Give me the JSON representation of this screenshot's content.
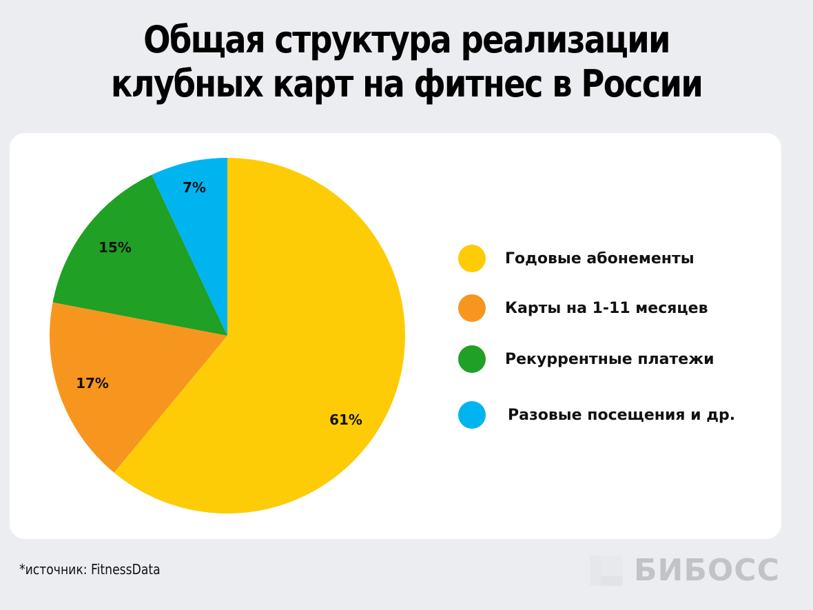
{
  "title": {
    "line1": "Общая структура реализации",
    "line2": "клубных карт на фитнес в России"
  },
  "footer": {
    "source": "*источник: FitnessData",
    "logo": "БИБОСС"
  },
  "legend": [
    {
      "label": "Годовые абонементы",
      "color": "#fecc07"
    },
    {
      "label": "Карты на 1-11 месяцев",
      "color": "#f7961e"
    },
    {
      "label": "Рекуррентные платежи",
      "color": "#20a024"
    },
    {
      "label": "Разовые посещения и др.",
      "color": "#00b4ef"
    }
  ],
  "labels": {
    "s0": "61%",
    "s1": "17%",
    "s2": "15%",
    "s3": "7%"
  },
  "chart_data": {
    "type": "pie",
    "title": "Общая структура реализации клубных карт на фитнес в России",
    "categories": [
      "Годовые абонементы",
      "Карты на 1-11 месяцев",
      "Рекуррентные платежи",
      "Разовые посещения и др."
    ],
    "values": [
      61,
      17,
      15,
      7
    ],
    "unit": "%",
    "colors": [
      "#fecc07",
      "#f7961e",
      "#20a024",
      "#00b4ef"
    ],
    "start_angle": "12 o'clock, clockwise",
    "legend_position": "right",
    "source": "FitnessData"
  }
}
